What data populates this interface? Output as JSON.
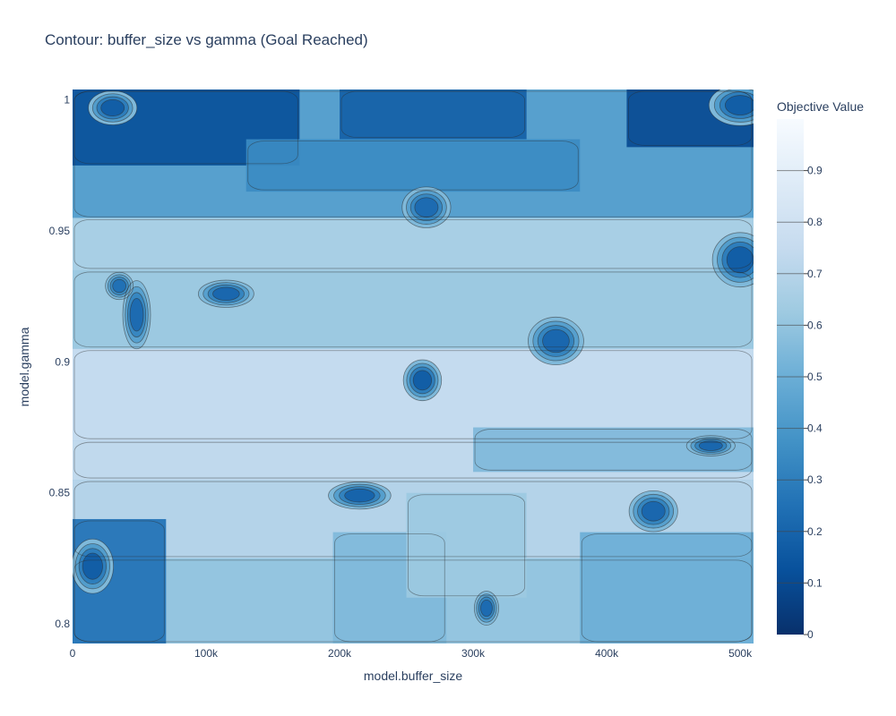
{
  "chart_data": {
    "type": "heatmap",
    "subtype": "contour",
    "title": "Contour: buffer_size vs gamma (Goal Reached)",
    "xlabel": "model.buffer_size",
    "ylabel": "model.gamma",
    "xlim": [
      0,
      510000
    ],
    "ylim": [
      0.7925,
      1.004
    ],
    "x_ticks": [
      {
        "value": 0,
        "label": "0"
      },
      {
        "value": 100000,
        "label": "100k"
      },
      {
        "value": 200000,
        "label": "200k"
      },
      {
        "value": 300000,
        "label": "300k"
      },
      {
        "value": 400000,
        "label": "400k"
      },
      {
        "value": 500000,
        "label": "500k"
      }
    ],
    "y_ticks": [
      {
        "value": 0.8,
        "label": "0.8"
      },
      {
        "value": 0.85,
        "label": "0.85"
      },
      {
        "value": 0.9,
        "label": "0.9"
      },
      {
        "value": 0.95,
        "label": "0.95"
      },
      {
        "value": 1.0,
        "label": "1"
      }
    ],
    "colorbar": {
      "title": "Objective Value",
      "range": [
        0,
        1
      ],
      "ticks": [
        0,
        0.1,
        0.2,
        0.3,
        0.4,
        0.5,
        0.6,
        0.7,
        0.8,
        0.9
      ],
      "tick_labels": [
        "0",
        "0.1",
        "0.2",
        "0.3",
        "0.4",
        "0.5",
        "0.6",
        "0.7",
        "0.8",
        "0.9"
      ],
      "colorscale": "Blues (dark = 0, white = 1)",
      "color_low": "#08306b",
      "color_high": "#f7fbff"
    },
    "regions": [
      {
        "x": [
          0,
          510000
        ],
        "y": [
          0.9547,
          1.004
        ],
        "level": 0.42
      },
      {
        "x": [
          0,
          170000
        ],
        "y": [
          0.975,
          1.004
        ],
        "level": 0.12
      },
      {
        "x": [
          200000,
          340000
        ],
        "y": [
          0.985,
          1.004
        ],
        "level": 0.18
      },
      {
        "x": [
          415000,
          510000
        ],
        "y": [
          0.982,
          1.004
        ],
        "level": 0.1
      },
      {
        "x": [
          130000,
          380000
        ],
        "y": [
          0.965,
          0.985
        ],
        "level": 0.35
      },
      {
        "x": [
          0,
          510000
        ],
        "y": [
          0.935,
          0.955
        ],
        "level": 0.66
      },
      {
        "x": [
          0,
          510000
        ],
        "y": [
          0.905,
          0.935
        ],
        "level": 0.62
      },
      {
        "x": [
          0,
          510000
        ],
        "y": [
          0.87,
          0.905
        ],
        "level": 0.76
      },
      {
        "x": [
          0,
          510000
        ],
        "y": [
          0.855,
          0.87
        ],
        "level": 0.74
      },
      {
        "x": [
          300000,
          510000
        ],
        "y": [
          0.858,
          0.875
        ],
        "level": 0.55
      },
      {
        "x": [
          0,
          510000
        ],
        "y": [
          0.825,
          0.855
        ],
        "level": 0.7
      },
      {
        "x": [
          0,
          510000
        ],
        "y": [
          0.7925,
          0.825
        ],
        "level": 0.6
      },
      {
        "x": [
          0,
          70000
        ],
        "y": [
          0.7925,
          0.84
        ],
        "level": 0.25
      },
      {
        "x": [
          380000,
          510000
        ],
        "y": [
          0.7925,
          0.835
        ],
        "level": 0.5
      },
      {
        "x": [
          195000,
          280000
        ],
        "y": [
          0.7925,
          0.835
        ],
        "level": 0.55
      },
      {
        "x": [
          250000,
          340000
        ],
        "y": [
          0.81,
          0.85
        ],
        "level": 0.62
      }
    ],
    "hotspots": [
      {
        "x": 15000,
        "y": 0.822,
        "rx": 12000,
        "ry": 0.008,
        "level": 0.05
      },
      {
        "x": 48000,
        "y": 0.918,
        "rx": 8000,
        "ry": 0.01,
        "level": 0.12
      },
      {
        "x": 35000,
        "y": 0.929,
        "rx": 8000,
        "ry": 0.004,
        "level": 0.15
      },
      {
        "x": 115000,
        "y": 0.926,
        "rx": 16000,
        "ry": 0.004,
        "level": 0.1
      },
      {
        "x": 265000,
        "y": 0.959,
        "rx": 14000,
        "ry": 0.006,
        "level": 0.12
      },
      {
        "x": 262000,
        "y": 0.893,
        "rx": 11000,
        "ry": 0.006,
        "level": 0.05
      },
      {
        "x": 362000,
        "y": 0.908,
        "rx": 16000,
        "ry": 0.007,
        "level": 0.1
      },
      {
        "x": 500000,
        "y": 0.939,
        "rx": 16000,
        "ry": 0.008,
        "level": 0.05
      },
      {
        "x": 215000,
        "y": 0.849,
        "rx": 18000,
        "ry": 0.004,
        "level": 0.08
      },
      {
        "x": 435000,
        "y": 0.843,
        "rx": 14000,
        "ry": 0.006,
        "level": 0.1
      },
      {
        "x": 310000,
        "y": 0.806,
        "rx": 7000,
        "ry": 0.005,
        "level": 0.12
      },
      {
        "x": 478000,
        "y": 0.868,
        "rx": 14000,
        "ry": 0.003,
        "level": 0.1
      },
      {
        "x": 500000,
        "y": 0.998,
        "rx": 18000,
        "ry": 0.006,
        "level": 0.05
      },
      {
        "x": 30000,
        "y": 0.997,
        "rx": 14000,
        "ry": 0.005,
        "level": 0.05
      }
    ],
    "contour_levels": [
      0.1,
      0.2,
      0.3,
      0.4,
      0.5,
      0.6,
      0.7,
      0.8,
      0.9
    ]
  }
}
